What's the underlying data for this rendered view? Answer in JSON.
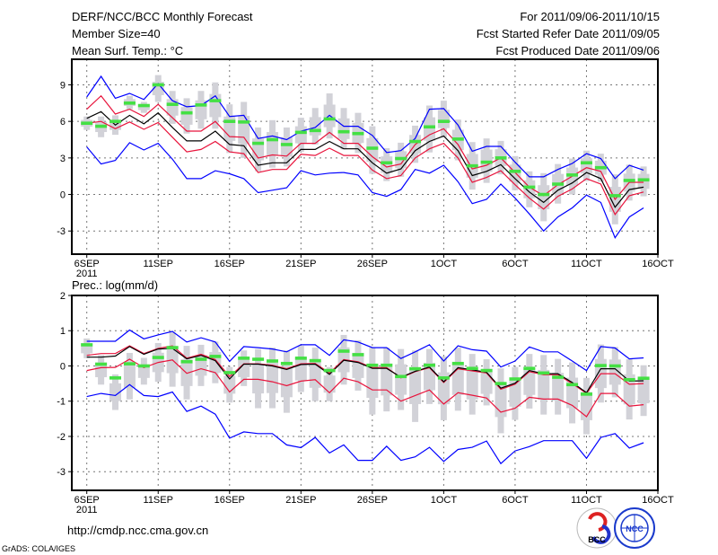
{
  "header": {
    "title": "DERF/NCC/BCC Monthly Forecast",
    "member_size": "Member Size=40",
    "variable": "Mean Surf. Temp.: °C",
    "period": "For 2011/09/06-2011/10/15",
    "started_date": "Fcst Started Refer Date 2011/09/05",
    "produced_date": "Fcst Produced Date 2011/09/06"
  },
  "footer": {
    "url": "http://cmdp.ncc.cma.gov.cn",
    "credit": "GrADS: COLA/IGES",
    "logos": [
      "BCC",
      "NCC"
    ]
  },
  "colors": {
    "mean": "#000000",
    "band": "#e8143c",
    "extreme": "#0000ff",
    "marker": "#44e044",
    "spread": "#d2d2d8"
  },
  "chart_data": [
    {
      "type": "line",
      "title": "Mean Surf. Temp.: °C",
      "ylabel": "°C",
      "x_ticks": [
        {
          "day": 0,
          "label": "6SEP"
        },
        {
          "day": 5,
          "label": "11SEP"
        },
        {
          "day": 10,
          "label": "16SEP"
        },
        {
          "day": 15,
          "label": "21SEP"
        },
        {
          "day": 20,
          "label": "26SEP"
        },
        {
          "day": 25,
          "label": "1OCT"
        },
        {
          "day": 30,
          "label": "6OCT"
        },
        {
          "day": 35,
          "label": "11OCT"
        },
        {
          "day": 40,
          "label": "16OCT"
        }
      ],
      "year_label": "2011",
      "y_ticks": [
        9,
        6,
        3,
        0,
        -3
      ],
      "ylim": [
        -4.9,
        11.1
      ],
      "xlim": [
        -1.05,
        40
      ],
      "grid": true,
      "series": [
        {
          "name": "spread_low",
          "values": [
            5.3,
            4.7,
            4.9,
            7.0,
            6.7,
            7.6,
            5.8,
            5.0,
            5.4,
            5.4,
            3.4,
            3.0,
            1.9,
            2.2,
            2.3,
            3.5,
            4.1,
            4.6,
            3.7,
            3.4,
            1.7,
            1.1,
            1.45,
            2.6,
            3.45,
            4.7,
            2.8,
            0.4,
            0.95,
            1.65,
            0.35,
            -1.05,
            -2.2,
            -0.75,
            0,
            1.1,
            1.05,
            -2.45,
            -0.5,
            -0.15
          ]
        },
        {
          "name": "spread_high",
          "values": [
            6.4,
            6.4,
            6.5,
            8.1,
            7.6,
            9.8,
            8.5,
            7.9,
            8.5,
            9.2,
            7.4,
            7.6,
            5.5,
            6.1,
            5.5,
            6.3,
            7.1,
            8.3,
            7.1,
            6.7,
            5.6,
            3.8,
            4.25,
            5.65,
            7.3,
            7.7,
            6.15,
            4.3,
            4.6,
            4.4,
            3.15,
            1.9,
            1.75,
            2.5,
            2.95,
            3.6,
            3.35,
            1.65,
            2.45,
            2.3
          ]
        },
        {
          "name": "max",
          "values": [
            8.0,
            9.7,
            7.9,
            8.3,
            7.8,
            9.1,
            7.7,
            7.2,
            7.3,
            8.1,
            6.4,
            6.5,
            4.6,
            4.8,
            4.5,
            5.2,
            5.5,
            6.5,
            5.6,
            5.6,
            4.85,
            3.45,
            3.6,
            4.6,
            7.0,
            7.05,
            5.7,
            3.55,
            3.95,
            3.95,
            2.65,
            1.45,
            1.45,
            2.05,
            2.55,
            3.35,
            2.95,
            1.3,
            2.4,
            2.0
          ]
        },
        {
          "name": "upper",
          "values": [
            7.0,
            8.1,
            6.6,
            7.0,
            6.4,
            7.4,
            6.3,
            5.2,
            5.2,
            6.0,
            4.75,
            4.7,
            3.0,
            3.25,
            3.15,
            4.2,
            4.2,
            5.1,
            4.2,
            4.2,
            3.1,
            2.25,
            2.5,
            4.1,
            4.9,
            5.4,
            4.1,
            2.1,
            2.4,
            3.0,
            1.8,
            0.6,
            -0.1,
            0.8,
            1.5,
            2.2,
            1.9,
            -0.4,
            1.0,
            1.0
          ]
        },
        {
          "name": "mean",
          "values": [
            6.25,
            6.8,
            5.7,
            6.5,
            5.8,
            6.7,
            5.5,
            4.4,
            4.4,
            5.2,
            4.1,
            4.0,
            2.4,
            2.6,
            2.6,
            3.7,
            3.7,
            4.35,
            3.75,
            3.75,
            2.6,
            1.75,
            2.1,
            3.6,
            4.35,
            4.8,
            3.6,
            1.55,
            1.9,
            2.45,
            1.3,
            0.2,
            -0.65,
            0.35,
            0.95,
            1.8,
            1.3,
            -1.05,
            0.4,
            0.6
          ]
        },
        {
          "name": "lower",
          "values": [
            5.85,
            6.0,
            5.4,
            5.95,
            5.35,
            5.9,
            4.7,
            3.5,
            3.7,
            4.35,
            3.5,
            3.35,
            1.8,
            2.05,
            2.05,
            3.3,
            3.2,
            3.8,
            3.2,
            3.2,
            2.0,
            1.3,
            1.55,
            3.0,
            3.75,
            4.2,
            3.0,
            1.0,
            1.4,
            1.95,
            0.8,
            -0.3,
            -1.2,
            -0.15,
            0.45,
            1.3,
            0.85,
            -1.65,
            -0.1,
            0.2
          ]
        },
        {
          "name": "min",
          "values": [
            3.9,
            2.5,
            2.8,
            4.25,
            3.65,
            4.2,
            2.9,
            1.3,
            1.3,
            1.95,
            1.7,
            1.3,
            0.15,
            0.35,
            0.55,
            1.95,
            1.6,
            1.75,
            1.8,
            1.6,
            0.15,
            -0.15,
            0.4,
            2.05,
            1.75,
            2.4,
            1.05,
            -0.75,
            -0.4,
            0.85,
            -0.3,
            -1.6,
            -3.0,
            -1.85,
            -1.1,
            -0.05,
            -0.65,
            -3.55,
            -1.85,
            -1.1
          ]
        },
        {
          "name": "ensemble_marker",
          "values": [
            5.85,
            5.6,
            6.0,
            7.5,
            7.3,
            9.0,
            7.4,
            6.7,
            7.35,
            7.7,
            6.0,
            5.95,
            4.2,
            4.5,
            4.1,
            5.1,
            5.25,
            6.2,
            5.15,
            5.0,
            3.8,
            2.6,
            2.95,
            4.35,
            5.55,
            6.0,
            4.55,
            2.35,
            2.65,
            3.0,
            1.9,
            0.6,
            0.0,
            0.85,
            1.6,
            2.6,
            2.2,
            -0.1,
            1.15,
            1.2
          ]
        }
      ]
    },
    {
      "type": "line",
      "title": "Prec.: log(mm/d)",
      "ylabel": "log(mm/d)",
      "x_ticks": [
        {
          "day": 0,
          "label": "6SEP"
        },
        {
          "day": 5,
          "label": "11SEP"
        },
        {
          "day": 10,
          "label": "16SEP"
        },
        {
          "day": 15,
          "label": "21SEP"
        },
        {
          "day": 20,
          "label": "26SEP"
        },
        {
          "day": 25,
          "label": "1OCT"
        },
        {
          "day": 30,
          "label": "6OCT"
        },
        {
          "day": 35,
          "label": "11OCT"
        },
        {
          "day": 40,
          "label": "16OCT"
        }
      ],
      "year_label": "2011",
      "y_ticks": [
        2,
        1,
        0,
        -1,
        -2,
        -3
      ],
      "ylim": [
        -3.53,
        2
      ],
      "xlim": [
        -1.05,
        40
      ],
      "grid": true,
      "series": [
        {
          "name": "spread_low",
          "values": [
            0.22,
            -0.53,
            -1.25,
            -0.95,
            -0.53,
            -0.45,
            -0.59,
            -0.95,
            -0.57,
            -0.49,
            -1.04,
            -0.57,
            -1.2,
            -1.2,
            -1.33,
            -0.74,
            -1.0,
            -1.0,
            -0.53,
            -0.7,
            -1.38,
            -1.29,
            -1.25,
            -1.59,
            -1.08,
            -1.54,
            -1.27,
            -1.38,
            -1.12,
            -1.91,
            -1.53,
            -1.21,
            -1.38,
            -1.38,
            -1.63,
            -1.94,
            -1.04,
            -0.89,
            -1.52,
            -1.42
          ]
        },
        {
          "name": "spread_high",
          "values": [
            0.78,
            0.31,
            -0.24,
            0.37,
            0.23,
            0.65,
            0.95,
            0.57,
            0.6,
            0.69,
            -0.03,
            0.44,
            0.48,
            0.52,
            0.44,
            0.57,
            0.52,
            -0.03,
            0.88,
            0.73,
            0.52,
            0.52,
            0.48,
            0.44,
            0.48,
            0.27,
            0.52,
            0.34,
            0.19,
            -0.07,
            -0.03,
            0.34,
            0.31,
            0.2,
            0.1,
            -0.34,
            0.61,
            0.54,
            0.19,
            0.02
          ]
        },
        {
          "name": "max",
          "values": [
            0.7,
            0.7,
            0.7,
            1.02,
            0.77,
            0.88,
            0.98,
            0.68,
            0.8,
            0.68,
            0.13,
            0.55,
            0.52,
            0.48,
            0.4,
            0.6,
            0.6,
            0.3,
            0.74,
            0.68,
            0.52,
            0.52,
            0.21,
            0.4,
            0.6,
            0.14,
            0.57,
            0.46,
            0.42,
            -0.03,
            0.14,
            0.54,
            0.4,
            0.4,
            0.14,
            -0.13,
            0.55,
            0.51,
            0.2,
            0.23
          ]
        },
        {
          "name": "upper",
          "values": [
            0.3,
            0.35,
            0.35,
            0.57,
            0.35,
            0.5,
            0.57,
            0.22,
            0.33,
            0.18,
            -0.3,
            0.06,
            0.06,
            0.02,
            -0.08,
            0.06,
            0.07,
            -0.2,
            0.18,
            0.12,
            -0.05,
            -0.05,
            -0.34,
            -0.16,
            -0.05,
            -0.47,
            -0.08,
            -0.14,
            -0.2,
            -0.66,
            -0.52,
            -0.16,
            -0.25,
            -0.25,
            -0.5,
            -0.78,
            -0.22,
            -0.22,
            -0.52,
            -0.5
          ]
        },
        {
          "name": "mean",
          "values": [
            0.25,
            0.25,
            0.28,
            0.55,
            0.33,
            0.48,
            0.5,
            0.2,
            0.3,
            0.15,
            -0.37,
            0.05,
            0.05,
            0.0,
            -0.1,
            0.04,
            0.05,
            -0.24,
            0.16,
            0.1,
            -0.07,
            -0.07,
            -0.32,
            -0.15,
            -0.03,
            -0.45,
            -0.05,
            -0.11,
            -0.18,
            -0.63,
            -0.49,
            -0.13,
            -0.22,
            -0.22,
            -0.47,
            -0.76,
            -0.08,
            -0.08,
            -0.43,
            -0.42
          ]
        },
        {
          "name": "lower",
          "values": [
            -0.13,
            -0.05,
            -0.04,
            0.19,
            -0.05,
            0.1,
            0.17,
            -0.21,
            -0.08,
            -0.19,
            -0.74,
            -0.38,
            -0.38,
            -0.45,
            -0.56,
            -0.43,
            -0.39,
            -0.76,
            -0.35,
            -0.45,
            -0.68,
            -0.68,
            -1.0,
            -0.84,
            -0.68,
            -1.08,
            -0.76,
            -0.83,
            -0.91,
            -1.31,
            -1.2,
            -0.89,
            -0.94,
            -0.94,
            -1.12,
            -1.44,
            -0.78,
            -0.78,
            -1.14,
            -1.1
          ]
        },
        {
          "name": "min",
          "values": [
            -0.87,
            -0.78,
            -0.84,
            -0.53,
            -0.84,
            -0.87,
            -0.74,
            -1.29,
            -1.14,
            -1.37,
            -2.05,
            -1.87,
            -1.92,
            -1.92,
            -2.24,
            -2.32,
            -2.03,
            -2.47,
            -2.24,
            -2.68,
            -2.68,
            -2.28,
            -2.68,
            -2.58,
            -2.31,
            -2.71,
            -2.37,
            -2.31,
            -2.13,
            -2.77,
            -2.41,
            -2.29,
            -2.12,
            -2.12,
            -2.12,
            -2.62,
            -2.03,
            -1.92,
            -2.33,
            -2.18
          ]
        },
        {
          "name": "ensemble_marker",
          "values": [
            0.6,
            0.05,
            -0.34,
            0.06,
            0.0,
            0.24,
            0.52,
            0.12,
            0.19,
            0.27,
            -0.19,
            0.22,
            0.19,
            0.14,
            0.07,
            0.22,
            0.15,
            -0.13,
            0.42,
            0.32,
            0.02,
            0.02,
            -0.3,
            -0.08,
            0.02,
            -0.34,
            0.07,
            -0.07,
            -0.13,
            -0.5,
            -0.37,
            -0.07,
            -0.2,
            -0.32,
            -0.53,
            -0.8,
            0.01,
            0.0,
            -0.39,
            -0.35
          ]
        }
      ]
    }
  ]
}
